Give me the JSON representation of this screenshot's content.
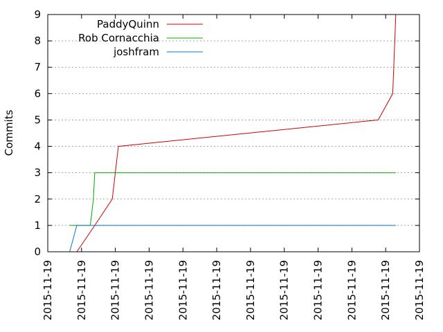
{
  "chart_data": {
    "type": "line",
    "title": "",
    "xlabel": "",
    "ylabel": "Commits",
    "ylim": [
      0,
      9
    ],
    "yticks": [
      0,
      1,
      2,
      3,
      4,
      5,
      6,
      7,
      8,
      9
    ],
    "xticks": [
      "2015-11-19",
      "2015-11-19",
      "2015-11-19",
      "2015-11-19",
      "2015-11-19",
      "2015-11-19",
      "2015-11-19",
      "2015-11-19",
      "2015-11-19",
      "2015-11-19",
      "2015-11-19",
      "2015-11-19"
    ],
    "grid": "horizontal dashed",
    "legend": "top-left",
    "series": [
      {
        "name": "PaddyQuinn",
        "color": "#cc0000",
        "points": [
          [
            0.86,
            0
          ],
          [
            1.39,
            1
          ],
          [
            1.91,
            2
          ],
          [
            2.09,
            4
          ],
          [
            9.78,
            5
          ],
          [
            10.21,
            6
          ],
          [
            10.3,
            9
          ]
        ]
      },
      {
        "name": "Rob Cornacchia",
        "color": "#00aa00",
        "points": [
          [
            0.65,
            1
          ],
          [
            1.26,
            1
          ],
          [
            1.35,
            2
          ],
          [
            1.39,
            3
          ],
          [
            10.3,
            3
          ]
        ]
      },
      {
        "name": "joshfram",
        "color": "#0077cc",
        "points": [
          [
            0.65,
            0
          ],
          [
            0.86,
            1
          ],
          [
            10.3,
            1
          ]
        ]
      }
    ]
  }
}
